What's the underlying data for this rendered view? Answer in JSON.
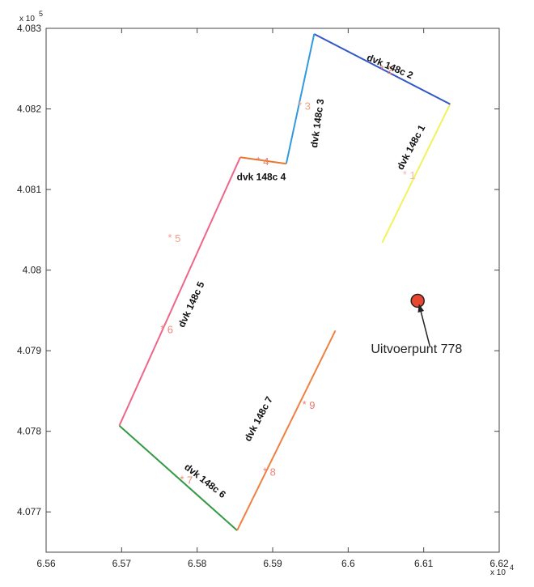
{
  "chart_data": {
    "type": "line",
    "xlim": [
      65600,
      66200
    ],
    "ylim": [
      407650,
      408300
    ],
    "x_ticks": [
      65600,
      65700,
      65800,
      65900,
      66000,
      66100,
      66200
    ],
    "x_tick_labels": [
      "6.56",
      "6.57",
      "6.58",
      "6.59",
      "6.6",
      "6.61",
      "6.62"
    ],
    "x_exponent_label": "x 10",
    "x_exponent_power": "4",
    "y_ticks": [
      407700,
      407800,
      407900,
      408000,
      408100,
      408200,
      408300
    ],
    "y_tick_labels": [
      "4.077",
      "4.078",
      "4.079",
      "4.08",
      "4.081",
      "4.082",
      "4.083"
    ],
    "y_exponent_label": "x 10",
    "y_exponent_power": "5",
    "grid": false,
    "series": [
      {
        "name": "dvk 148c 1",
        "color": "#f2f25a",
        "x": [
          66045,
          66135
        ],
        "y": [
          408034,
          408206
        ]
      },
      {
        "name": "dvk 148c 2",
        "color": "#3355cc",
        "x": [
          65955,
          66135
        ],
        "y": [
          408293,
          408206
        ]
      },
      {
        "name": "dvk 148c 3",
        "color": "#3399dd",
        "x": [
          65918,
          65955
        ],
        "y": [
          408132,
          408293
        ]
      },
      {
        "name": "dvk 148c 4",
        "color": "#e87830",
        "x": [
          65857,
          65918
        ],
        "y": [
          408140,
          408132
        ]
      },
      {
        "name": "dvk 148c 5",
        "color": "#ee6688",
        "x": [
          65697,
          65857
        ],
        "y": [
          407807,
          408140
        ]
      },
      {
        "name": "dvk 148c 6",
        "color": "#339944",
        "x": [
          65697,
          65853
        ],
        "y": [
          407807,
          407677
        ]
      },
      {
        "name": "dvk 148c 7",
        "color": "#f08040",
        "x": [
          65853,
          65983
        ],
        "y": [
          407677,
          407925
        ]
      }
    ],
    "segment_labels": [
      {
        "text": "dvk 148c 1",
        "x": 66084,
        "y": 408152,
        "angle": -62
      },
      {
        "text": "dvk 148c 2",
        "x": 66055,
        "y": 408252,
        "angle": 23
      },
      {
        "text": "dvk 148c 3",
        "x": 65960,
        "y": 408182,
        "angle": -82
      },
      {
        "text": "dvk 148c 4",
        "x": 65885,
        "y": 408115,
        "angle": 0
      },
      {
        "text": "dvk 148c 5",
        "x": 65793,
        "y": 407957,
        "angle": -65
      },
      {
        "text": "dvk 148c 6",
        "x": 65810,
        "y": 407738,
        "angle": 38
      },
      {
        "text": "dvk 148c 7",
        "x": 65882,
        "y": 407815,
        "angle": -62
      }
    ],
    "markers": [
      {
        "label": "1",
        "x": 66075,
        "y": 408118,
        "color": "#f0b8b0"
      },
      {
        "label": "2",
        "x": 66045,
        "y": 408249,
        "color": "#e87a6a"
      },
      {
        "label": "3",
        "x": 65936,
        "y": 408204,
        "color": "#f0a080"
      },
      {
        "label": "4",
        "x": 65881,
        "y": 408135,
        "color": "#e87a6a"
      },
      {
        "label": "5",
        "x": 65764,
        "y": 408040,
        "color": "#f0a088"
      },
      {
        "label": "6",
        "x": 65754,
        "y": 407927,
        "color": "#f08878"
      },
      {
        "label": "7",
        "x": 65780,
        "y": 407740,
        "color": "#f08878"
      },
      {
        "label": "8",
        "x": 65890,
        "y": 407750,
        "color": "#f08878"
      },
      {
        "label": "9",
        "x": 65942,
        "y": 407833,
        "color": "#e87a6a"
      }
    ],
    "outlet_point": {
      "x": 66092,
      "y": 407962,
      "color": "#e84830"
    },
    "annotation": {
      "text": "Uitvoerpunt 778",
      "text_x": 66030,
      "text_y": 407897,
      "arrow_from_x": 66108,
      "arrow_from_y": 407906,
      "arrow_to_x": 66094,
      "arrow_to_y": 407957
    }
  }
}
